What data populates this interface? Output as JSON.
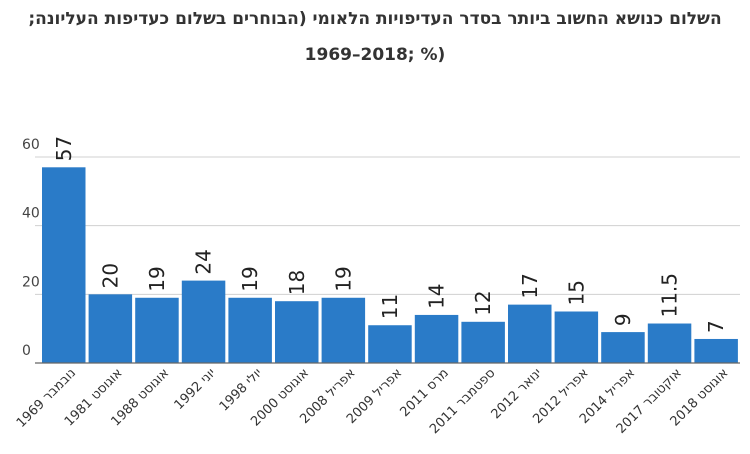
{
  "chart_data": {
    "type": "bar",
    "title_line1": "השלום כנושא החשוב ביותר בסדר העדיפויות הלאומי (הבוחרים בשלום כעדיפות העליונה;",
    "title_line2": "1969–2018; %)",
    "categories": [
      "נובמבר 1969",
      "אוגוסט 1981",
      "אוגוסט 1988",
      "יוני 1992",
      "יולי 1998",
      "אוגוסט 2000",
      "אפריל 2008",
      "אפריל 2009",
      "מרס 2011",
      "ספטמבר 2011",
      "ינואר 2012",
      "אפריל 2012",
      "אפריל 2014",
      "אוקטובר 2017",
      "אוגוסט 2018"
    ],
    "values": [
      57,
      20,
      19,
      24,
      19,
      18,
      19,
      11,
      14,
      12,
      17,
      15,
      9,
      11.5,
      7
    ],
    "value_labels": [
      "57",
      "20",
      "19",
      "24",
      "19",
      "18",
      "19",
      "11",
      "14",
      "12",
      "17",
      "15",
      "9",
      "11.5",
      "7"
    ],
    "yticks": [
      0,
      20,
      40,
      60
    ],
    "ylim": [
      0,
      60
    ],
    "grid": true,
    "bar_color": "#2a7bc8"
  }
}
